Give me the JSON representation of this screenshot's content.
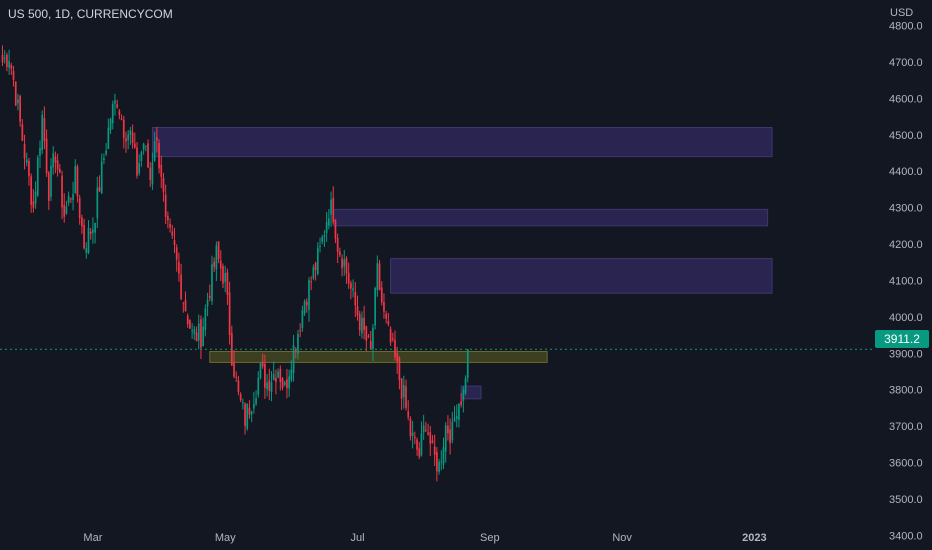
{
  "chart_title": "US 500, 1D, CURRENCYCOM",
  "currency": "USD",
  "last_price_label": "3911.2",
  "colors": {
    "background": "#131722",
    "up": "#089981",
    "down": "#F23645",
    "zone_purple": "#2A2550",
    "zone_yellow": "#3C4020",
    "axis_text": "#B2B5BE"
  },
  "chart_data": {
    "type": "candlestick",
    "title": "US 500, 1D, CURRENCYCOM",
    "ylabel": "USD",
    "ylim": [
      3360,
      4870
    ],
    "y_ticks": [
      3400,
      3500,
      3600,
      3700,
      3800,
      3900,
      4000,
      4100,
      4200,
      4300,
      4400,
      4500,
      4600,
      4700,
      4800
    ],
    "y_tick_labels": [
      "3400.0",
      "3500.0",
      "3600.0",
      "3700.0",
      "3800.0",
      "3900.0",
      "4000.0",
      "4100.0",
      "4200.0",
      "4300.0",
      "4400.0",
      "4500.0",
      "4600.0",
      "4700.0",
      "4800.0"
    ],
    "x_tick_labels": [
      "Mar",
      "May",
      "Jul",
      "Sep",
      "Nov",
      "2023"
    ],
    "x_tick_positions": [
      41,
      101,
      161,
      221,
      281,
      341
    ],
    "last_price": 3911.2,
    "series_points": [
      [
        0,
        4700
      ],
      [
        3,
        4720
      ],
      [
        5,
        4650
      ],
      [
        10,
        4450
      ],
      [
        14,
        4300
      ],
      [
        18,
        4550
      ],
      [
        21,
        4350
      ],
      [
        24,
        4450
      ],
      [
        28,
        4280
      ],
      [
        33,
        4380
      ],
      [
        37,
        4200
      ],
      [
        41,
        4250
      ],
      [
        45,
        4400
      ],
      [
        49,
        4550
      ],
      [
        52,
        4600
      ],
      [
        55,
        4520
      ],
      [
        58,
        4500
      ],
      [
        61,
        4400
      ],
      [
        64,
        4480
      ],
      [
        67,
        4380
      ],
      [
        69,
        4500
      ],
      [
        72,
        4400
      ],
      [
        74,
        4250
      ],
      [
        78,
        4180
      ],
      [
        82,
        4050
      ],
      [
        86,
        3950
      ],
      [
        90,
        3950
      ],
      [
        93,
        4050
      ],
      [
        97,
        4170
      ],
      [
        101,
        4100
      ],
      [
        104,
        3900
      ],
      [
        107,
        3780
      ],
      [
        110,
        3720
      ],
      [
        114,
        3790
      ],
      [
        117,
        3850
      ],
      [
        120,
        3820
      ],
      [
        125,
        3860
      ],
      [
        128,
        3800
      ],
      [
        131,
        3890
      ],
      [
        134,
        3960
      ],
      [
        137,
        4050
      ],
      [
        140,
        4100
      ],
      [
        144,
        4180
      ],
      [
        148,
        4300
      ],
      [
        150,
        4290
      ],
      [
        152,
        4200
      ],
      [
        155,
        4150
      ],
      [
        159,
        4050
      ],
      [
        163,
        3970
      ],
      [
        167,
        3900
      ],
      [
        170,
        4120
      ],
      [
        173,
        4000
      ],
      [
        175,
        3950
      ],
      [
        178,
        3880
      ],
      [
        182,
        3780
      ],
      [
        185,
        3680
      ],
      [
        189,
        3620
      ],
      [
        192,
        3720
      ],
      [
        195,
        3620
      ],
      [
        198,
        3590
      ],
      [
        201,
        3700
      ],
      [
        204,
        3680
      ],
      [
        206,
        3760
      ],
      [
        209,
        3790
      ],
      [
        211,
        3911
      ]
    ],
    "zones": [
      {
        "type": "supply",
        "from_bar": 68,
        "to_bar": 349,
        "low": 4440,
        "high": 4520
      },
      {
        "type": "supply",
        "from_bar": 150,
        "to_bar": 347,
        "low": 4250,
        "high": 4295
      },
      {
        "type": "supply",
        "from_bar": 176,
        "to_bar": 349,
        "low": 4065,
        "high": 4160
      },
      {
        "type": "support",
        "from_bar": 94,
        "to_bar": 247,
        "low": 3875,
        "high": 3905
      },
      {
        "type": "demand",
        "from_bar": 208,
        "to_bar": 217,
        "low": 3775,
        "high": 3810
      }
    ]
  }
}
